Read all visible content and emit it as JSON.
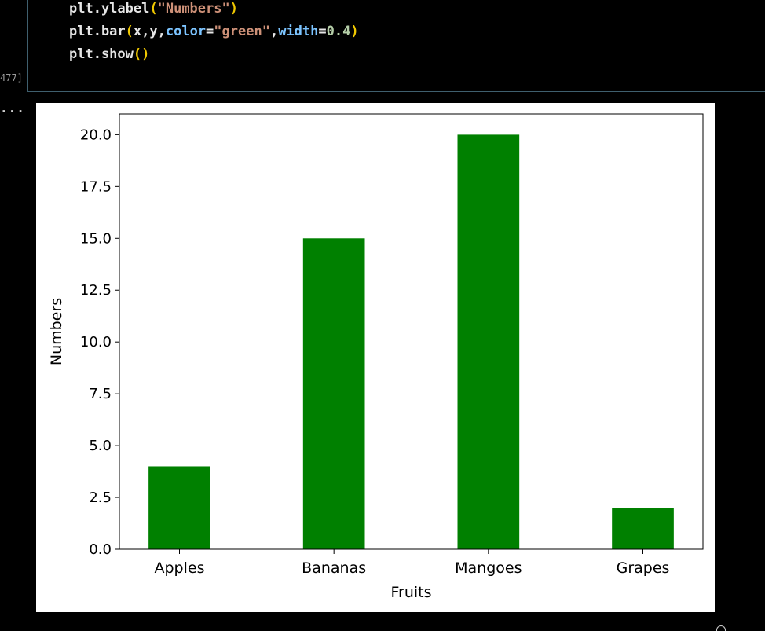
{
  "code_cell": {
    "lines": [
      [
        {
          "t": "plt.ylabel",
          "c": "func"
        },
        {
          "t": "(",
          "c": "paren"
        },
        {
          "t": "\"Numbers\"",
          "c": "str"
        },
        {
          "t": ")",
          "c": "paren"
        }
      ],
      [
        {
          "t": "plt.bar",
          "c": "func"
        },
        {
          "t": "(",
          "c": "paren"
        },
        {
          "t": "x,y,",
          "c": "func"
        },
        {
          "t": "color",
          "c": "kw"
        },
        {
          "t": "=",
          "c": "func"
        },
        {
          "t": "\"green\"",
          "c": "str"
        },
        {
          "t": ",",
          "c": "func"
        },
        {
          "t": "width",
          "c": "kw"
        },
        {
          "t": "=",
          "c": "func"
        },
        {
          "t": "0.4",
          "c": "num"
        },
        {
          "t": ")",
          "c": "paren"
        }
      ],
      [
        {
          "t": "plt.show",
          "c": "func"
        },
        {
          "t": "()",
          "c": "paren"
        }
      ]
    ],
    "execution_count": "477]"
  },
  "output": {
    "ellipsis": "..."
  },
  "chart_data": {
    "type": "bar",
    "categories": [
      "Apples",
      "Bananas",
      "Mangoes",
      "Grapes"
    ],
    "values": [
      4,
      15,
      20,
      2
    ],
    "xlabel": "Fruits",
    "ylabel": "Numbers",
    "ylim": [
      0,
      21
    ],
    "yticks": [
      "0.0",
      "2.5",
      "5.0",
      "7.5",
      "10.0",
      "12.5",
      "15.0",
      "17.5",
      "20.0"
    ],
    "ytick_values": [
      0,
      2.5,
      5,
      7.5,
      10,
      12.5,
      15,
      17.5,
      20
    ],
    "bar_color": "#008000",
    "grid": false
  }
}
